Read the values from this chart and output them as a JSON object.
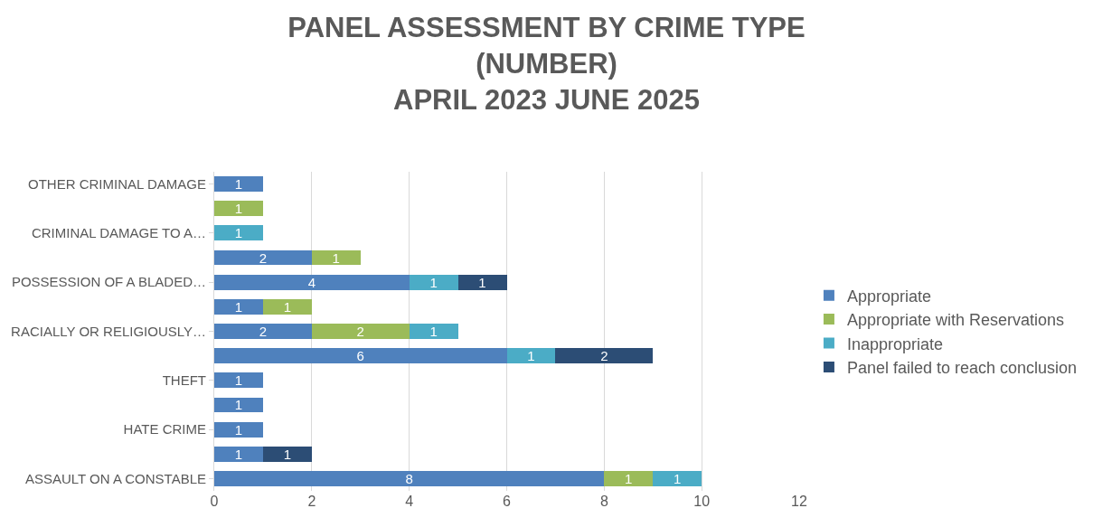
{
  "chart_data": {
    "type": "bar",
    "orientation": "horizontal",
    "stacked": true,
    "data_labels": true,
    "title": "PANEL ASSESSMENT BY CRIME TYPE\n(NUMBER)\nAPRIL 2023 JUNE 2025",
    "categories": [
      "OTHER CRIMINAL DAMAGE",
      null,
      "CRIMINAL DAMAGE TO A…",
      null,
      "POSSESSION OF A BLADED…",
      null,
      "RACIALLY OR RELIGIOUSLY…",
      null,
      "THEFT",
      null,
      "HATE CRIME",
      null,
      "ASSAULT ON A CONSTABLE"
    ],
    "series": [
      {
        "name": "Appropriate",
        "color": "#4f81bd",
        "values": [
          1,
          null,
          null,
          2,
          4,
          1,
          2,
          6,
          1,
          1,
          1,
          1,
          8
        ]
      },
      {
        "name": "Appropriate with Reservations",
        "color": "#9bbb59",
        "values": [
          null,
          1,
          null,
          1,
          null,
          1,
          2,
          null,
          null,
          null,
          null,
          null,
          1
        ]
      },
      {
        "name": "Inappropriate",
        "color": "#4bacc6",
        "values": [
          null,
          null,
          1,
          null,
          1,
          null,
          1,
          1,
          null,
          null,
          null,
          null,
          1
        ]
      },
      {
        "name": "Panel failed to reach conclusion",
        "color": "#2c4d75",
        "values": [
          null,
          null,
          null,
          null,
          1,
          null,
          null,
          2,
          null,
          null,
          null,
          1,
          null
        ]
      }
    ],
    "xlim": [
      0,
      12
    ],
    "xticks": [
      0,
      2,
      4,
      6,
      8,
      10,
      12
    ],
    "grid": "x",
    "legend": "right"
  }
}
